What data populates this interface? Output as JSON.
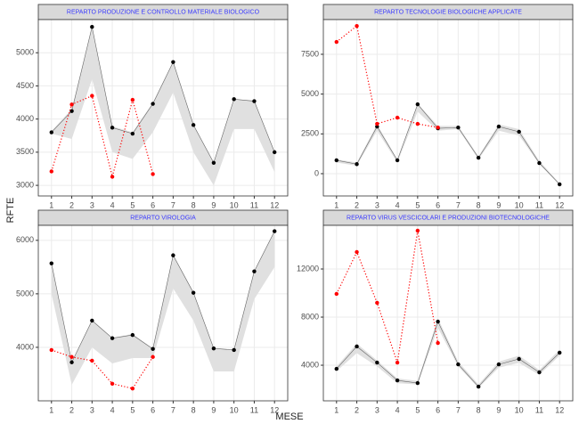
{
  "xlabel": "MESE",
  "ylabel": "RFTE",
  "chart_data": [
    {
      "type": "line",
      "title": "REPARTO PRODUZIONE E CONTROLLO MATERIALE BIOLOGICO",
      "x": [
        1,
        2,
        3,
        4,
        5,
        6,
        7,
        8,
        9,
        10,
        11,
        12
      ],
      "xlim": [
        0.35,
        12.65
      ],
      "xticks": [
        1,
        2,
        3,
        4,
        5,
        6,
        7,
        8,
        9,
        10,
        11,
        12
      ],
      "ylim": [
        2840,
        5500
      ],
      "yticks": [
        3000,
        3500,
        4000,
        4500,
        5000
      ],
      "grid": true,
      "band": {
        "color": "#e0e0e0",
        "lower": [
          3780,
          3700,
          4600,
          3500,
          3400,
          3800,
          4400,
          3500,
          3000,
          3850,
          3850,
          3200
        ],
        "upper": [
          3820,
          4150,
          5390,
          3890,
          3800,
          4250,
          4870,
          3920,
          3350,
          4300,
          4280,
          3510
        ]
      },
      "series": [
        {
          "color": "#000000",
          "values": [
            3800,
            4120,
            5390,
            3870,
            3780,
            4230,
            4860,
            3910,
            3340,
            4300,
            4270,
            3500
          ]
        },
        {
          "color": "#ff0000",
          "values": [
            3210,
            4220,
            4350,
            3130,
            4290,
            3170,
            null,
            null,
            null,
            null,
            null,
            null
          ]
        }
      ]
    },
    {
      "type": "line",
      "title": "REPARTO TECNOLOGIE BIOLOGICHE APPLICATE",
      "x": [
        1,
        2,
        3,
        4,
        5,
        6,
        7,
        8,
        9,
        10,
        11,
        12
      ],
      "xlim": [
        0.35,
        12.65
      ],
      "xticks": [
        1,
        2,
        3,
        4,
        5,
        6,
        7,
        8,
        9,
        10,
        11,
        12
      ],
      "ylim": [
        -1400,
        9680
      ],
      "yticks": [
        0,
        2500,
        5000,
        7500
      ],
      "grid": true,
      "band": {
        "color": "#e0e0e0",
        "lower": [
          700,
          500,
          2700,
          700,
          3900,
          2700,
          2800,
          900,
          2700,
          2400,
          600,
          -700
        ],
        "upper": [
          900,
          700,
          3100,
          900,
          4400,
          3000,
          3000,
          1100,
          3100,
          2800,
          800,
          -600
        ]
      },
      "series": [
        {
          "color": "#000000",
          "values": [
            840,
            600,
            2960,
            840,
            4360,
            2850,
            2900,
            1000,
            2960,
            2630,
            670,
            -670
          ]
        },
        {
          "color": "#ff0000",
          "values": [
            8280,
            9280,
            3130,
            3520,
            3130,
            2900,
            null,
            null,
            null,
            null,
            null,
            null
          ]
        }
      ]
    },
    {
      "type": "line",
      "title": "REPARTO VIROLOGIA",
      "x": [
        1,
        2,
        3,
        4,
        5,
        6,
        7,
        8,
        9,
        10,
        11,
        12
      ],
      "xlim": [
        0.35,
        12.65
      ],
      "xticks": [
        1,
        2,
        3,
        4,
        5,
        6,
        7,
        8,
        9,
        10,
        11,
        12
      ],
      "ylim": [
        3000,
        6280
      ],
      "yticks": [
        4000,
        5000,
        6000
      ],
      "grid": true,
      "band": {
        "color": "#e0e0e0",
        "lower": [
          5000,
          3300,
          4000,
          3700,
          3800,
          3800,
          5100,
          4500,
          3550,
          3550,
          4900,
          5500
        ],
        "upper": [
          5580,
          3730,
          4510,
          4180,
          4250,
          3980,
          5730,
          5030,
          3990,
          3960,
          5430,
          6180
        ]
      },
      "series": [
        {
          "color": "#000000",
          "values": [
            5570,
            3720,
            4500,
            4170,
            4230,
            3970,
            5720,
            5020,
            3980,
            3950,
            5420,
            6170
          ]
        },
        {
          "color": "#ff0000",
          "values": [
            3950,
            3820,
            3750,
            3320,
            3230,
            3820,
            null,
            null,
            null,
            null,
            null,
            null
          ]
        }
      ]
    },
    {
      "type": "line",
      "title": "REPARTO VIRUS VESCICOLARI E PRODUZIONI BIOTECNOLOGICHE",
      "x": [
        1,
        2,
        3,
        4,
        5,
        6,
        7,
        8,
        9,
        10,
        11,
        12
      ],
      "xlim": [
        0.35,
        12.65
      ],
      "xticks": [
        1,
        2,
        3,
        4,
        5,
        6,
        7,
        8,
        9,
        10,
        11,
        12
      ],
      "ylim": [
        1040,
        15630
      ],
      "yticks": [
        4000,
        8000,
        12000
      ],
      "grid": true,
      "band": {
        "color": "#e0e0e0",
        "lower": [
          3500,
          5000,
          3900,
          2500,
          2400,
          7100,
          3900,
          2100,
          3800,
          4200,
          3200,
          4800
        ],
        "upper": [
          3900,
          5800,
          4400,
          2900,
          2700,
          7900,
          4300,
          2400,
          4300,
          4800,
          3600,
          5300
        ]
      },
      "series": [
        {
          "color": "#000000",
          "values": [
            3700,
            5560,
            4220,
            2740,
            2520,
            7630,
            4070,
            2220,
            4070,
            4520,
            3410,
            5040
          ]
        },
        {
          "color": "#ff0000",
          "values": [
            9930,
            13410,
            9190,
            4220,
            15190,
            5850,
            null,
            null,
            null,
            null,
            null,
            null
          ]
        }
      ]
    }
  ]
}
